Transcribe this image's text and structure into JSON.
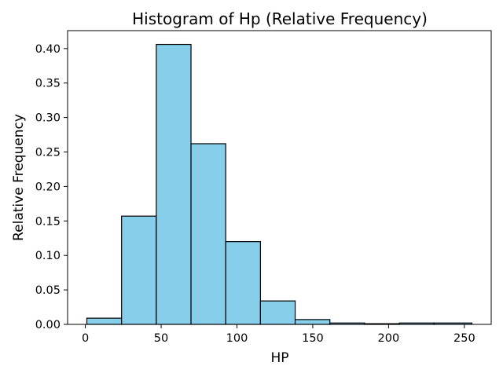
{
  "chart_data": {
    "type": "bar",
    "title": "Histogram of Hp (Relative Frequency)",
    "xlabel": "HP",
    "ylabel": "Relative Frequency",
    "bar_color": "#87ceeb",
    "edge_color": "#000000",
    "grid": false,
    "bins": [
      {
        "x0": 1.0,
        "x1": 23.9,
        "value": 0.009
      },
      {
        "x0": 23.9,
        "x1": 46.8,
        "value": 0.157
      },
      {
        "x0": 46.8,
        "x1": 69.7,
        "value": 0.406
      },
      {
        "x0": 69.7,
        "x1": 92.6,
        "value": 0.262
      },
      {
        "x0": 92.6,
        "x1": 115.5,
        "value": 0.12
      },
      {
        "x0": 115.5,
        "x1": 138.4,
        "value": 0.034
      },
      {
        "x0": 138.4,
        "x1": 161.3,
        "value": 0.007
      },
      {
        "x0": 161.3,
        "x1": 184.2,
        "value": 0.002
      },
      {
        "x0": 184.2,
        "x1": 207.1,
        "value": 0.001
      },
      {
        "x0": 207.1,
        "x1": 230.0,
        "value": 0.002
      },
      {
        "x0": 230.0,
        "x1": 255.0,
        "value": 0.002
      }
    ],
    "xlim": [
      -11.7,
      267.7
    ],
    "ylim": [
      0,
      0.426
    ],
    "xticks": [
      0,
      50,
      100,
      150,
      200,
      250
    ],
    "xtick_labels": [
      "0",
      "50",
      "100",
      "150",
      "200",
      "250"
    ],
    "yticks": [
      0.0,
      0.05,
      0.1,
      0.15,
      0.2,
      0.25,
      0.3,
      0.35,
      0.4
    ],
    "ytick_labels": [
      "0.00",
      "0.05",
      "0.10",
      "0.15",
      "0.20",
      "0.25",
      "0.30",
      "0.35",
      "0.40"
    ]
  }
}
